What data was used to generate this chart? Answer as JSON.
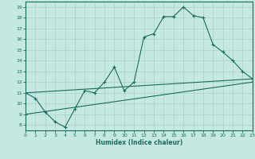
{
  "xlabel": "Humidex (Indice chaleur)",
  "bg_color": "#c5e8e0",
  "grid_color": "#aed4cc",
  "line_color": "#1a6b60",
  "line1_x": [
    0,
    1,
    2,
    3,
    4,
    5,
    6,
    7,
    8,
    9,
    10,
    11,
    12,
    13,
    14,
    15,
    16,
    17,
    18,
    19,
    20,
    21,
    22,
    23
  ],
  "line1_y": [
    11.0,
    10.5,
    9.2,
    8.3,
    7.8,
    9.5,
    11.2,
    11.0,
    12.0,
    13.4,
    11.2,
    12.0,
    16.2,
    16.5,
    18.1,
    18.1,
    19.0,
    18.2,
    18.0,
    15.5,
    14.8,
    14.0,
    13.0,
    12.3
  ],
  "line2_x": [
    0,
    23
  ],
  "line2_y": [
    11.0,
    12.3
  ],
  "line3_x": [
    0,
    23
  ],
  "line3_y": [
    9.0,
    12.0
  ],
  "xlim": [
    0,
    23
  ],
  "ylim": [
    7.5,
    19.5
  ],
  "yticks": [
    8,
    9,
    10,
    11,
    12,
    13,
    14,
    15,
    16,
    17,
    18,
    19
  ],
  "xticks": [
    0,
    1,
    2,
    3,
    4,
    5,
    6,
    7,
    8,
    9,
    10,
    11,
    12,
    13,
    14,
    15,
    16,
    17,
    18,
    19,
    20,
    21,
    22,
    23
  ]
}
